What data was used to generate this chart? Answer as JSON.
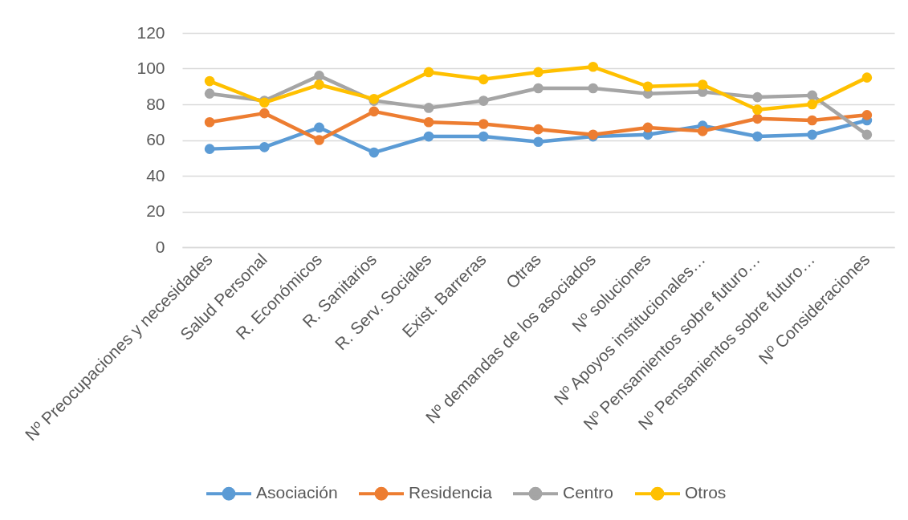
{
  "chart_data": {
    "type": "line",
    "categories": [
      "Nº Preocupaciones y necesidades",
      "Salud Personal",
      "R. Económicos",
      "R. Sanitarios",
      "R. Serv. Sociales",
      "Exist. Barreras",
      "Otras",
      "Nº demandas de los asociados",
      "Nº soluciones",
      "Nº Apoyos institucionales…",
      "Nº Pensamientos sobre futuro…",
      "Nº Pensamientos sobre futuro…",
      "Nº Consideraciones"
    ],
    "series": [
      {
        "name": "Asociación",
        "color": "#5b9bd5",
        "values": [
          55,
          56,
          67,
          53,
          62,
          62,
          59,
          62,
          63,
          68,
          62,
          63,
          71
        ]
      },
      {
        "name": "Residencia",
        "color": "#ed7d31",
        "values": [
          70,
          75,
          60,
          76,
          70,
          69,
          66,
          63,
          67,
          65,
          72,
          71,
          74
        ]
      },
      {
        "name": "Centro",
        "color": "#a5a5a5",
        "values": [
          86,
          82,
          96,
          82,
          78,
          82,
          89,
          89,
          86,
          87,
          84,
          85,
          63
        ]
      },
      {
        "name": "Otros",
        "color": "#ffc000",
        "values": [
          93,
          81,
          91,
          83,
          98,
          94,
          98,
          101,
          90,
          91,
          77,
          80,
          95
        ]
      }
    ],
    "ylim": [
      0,
      120
    ],
    "yticks": [
      0,
      20,
      40,
      60,
      80,
      100,
      120
    ],
    "grid": "y",
    "legend": "bottom",
    "marker": "circle"
  }
}
